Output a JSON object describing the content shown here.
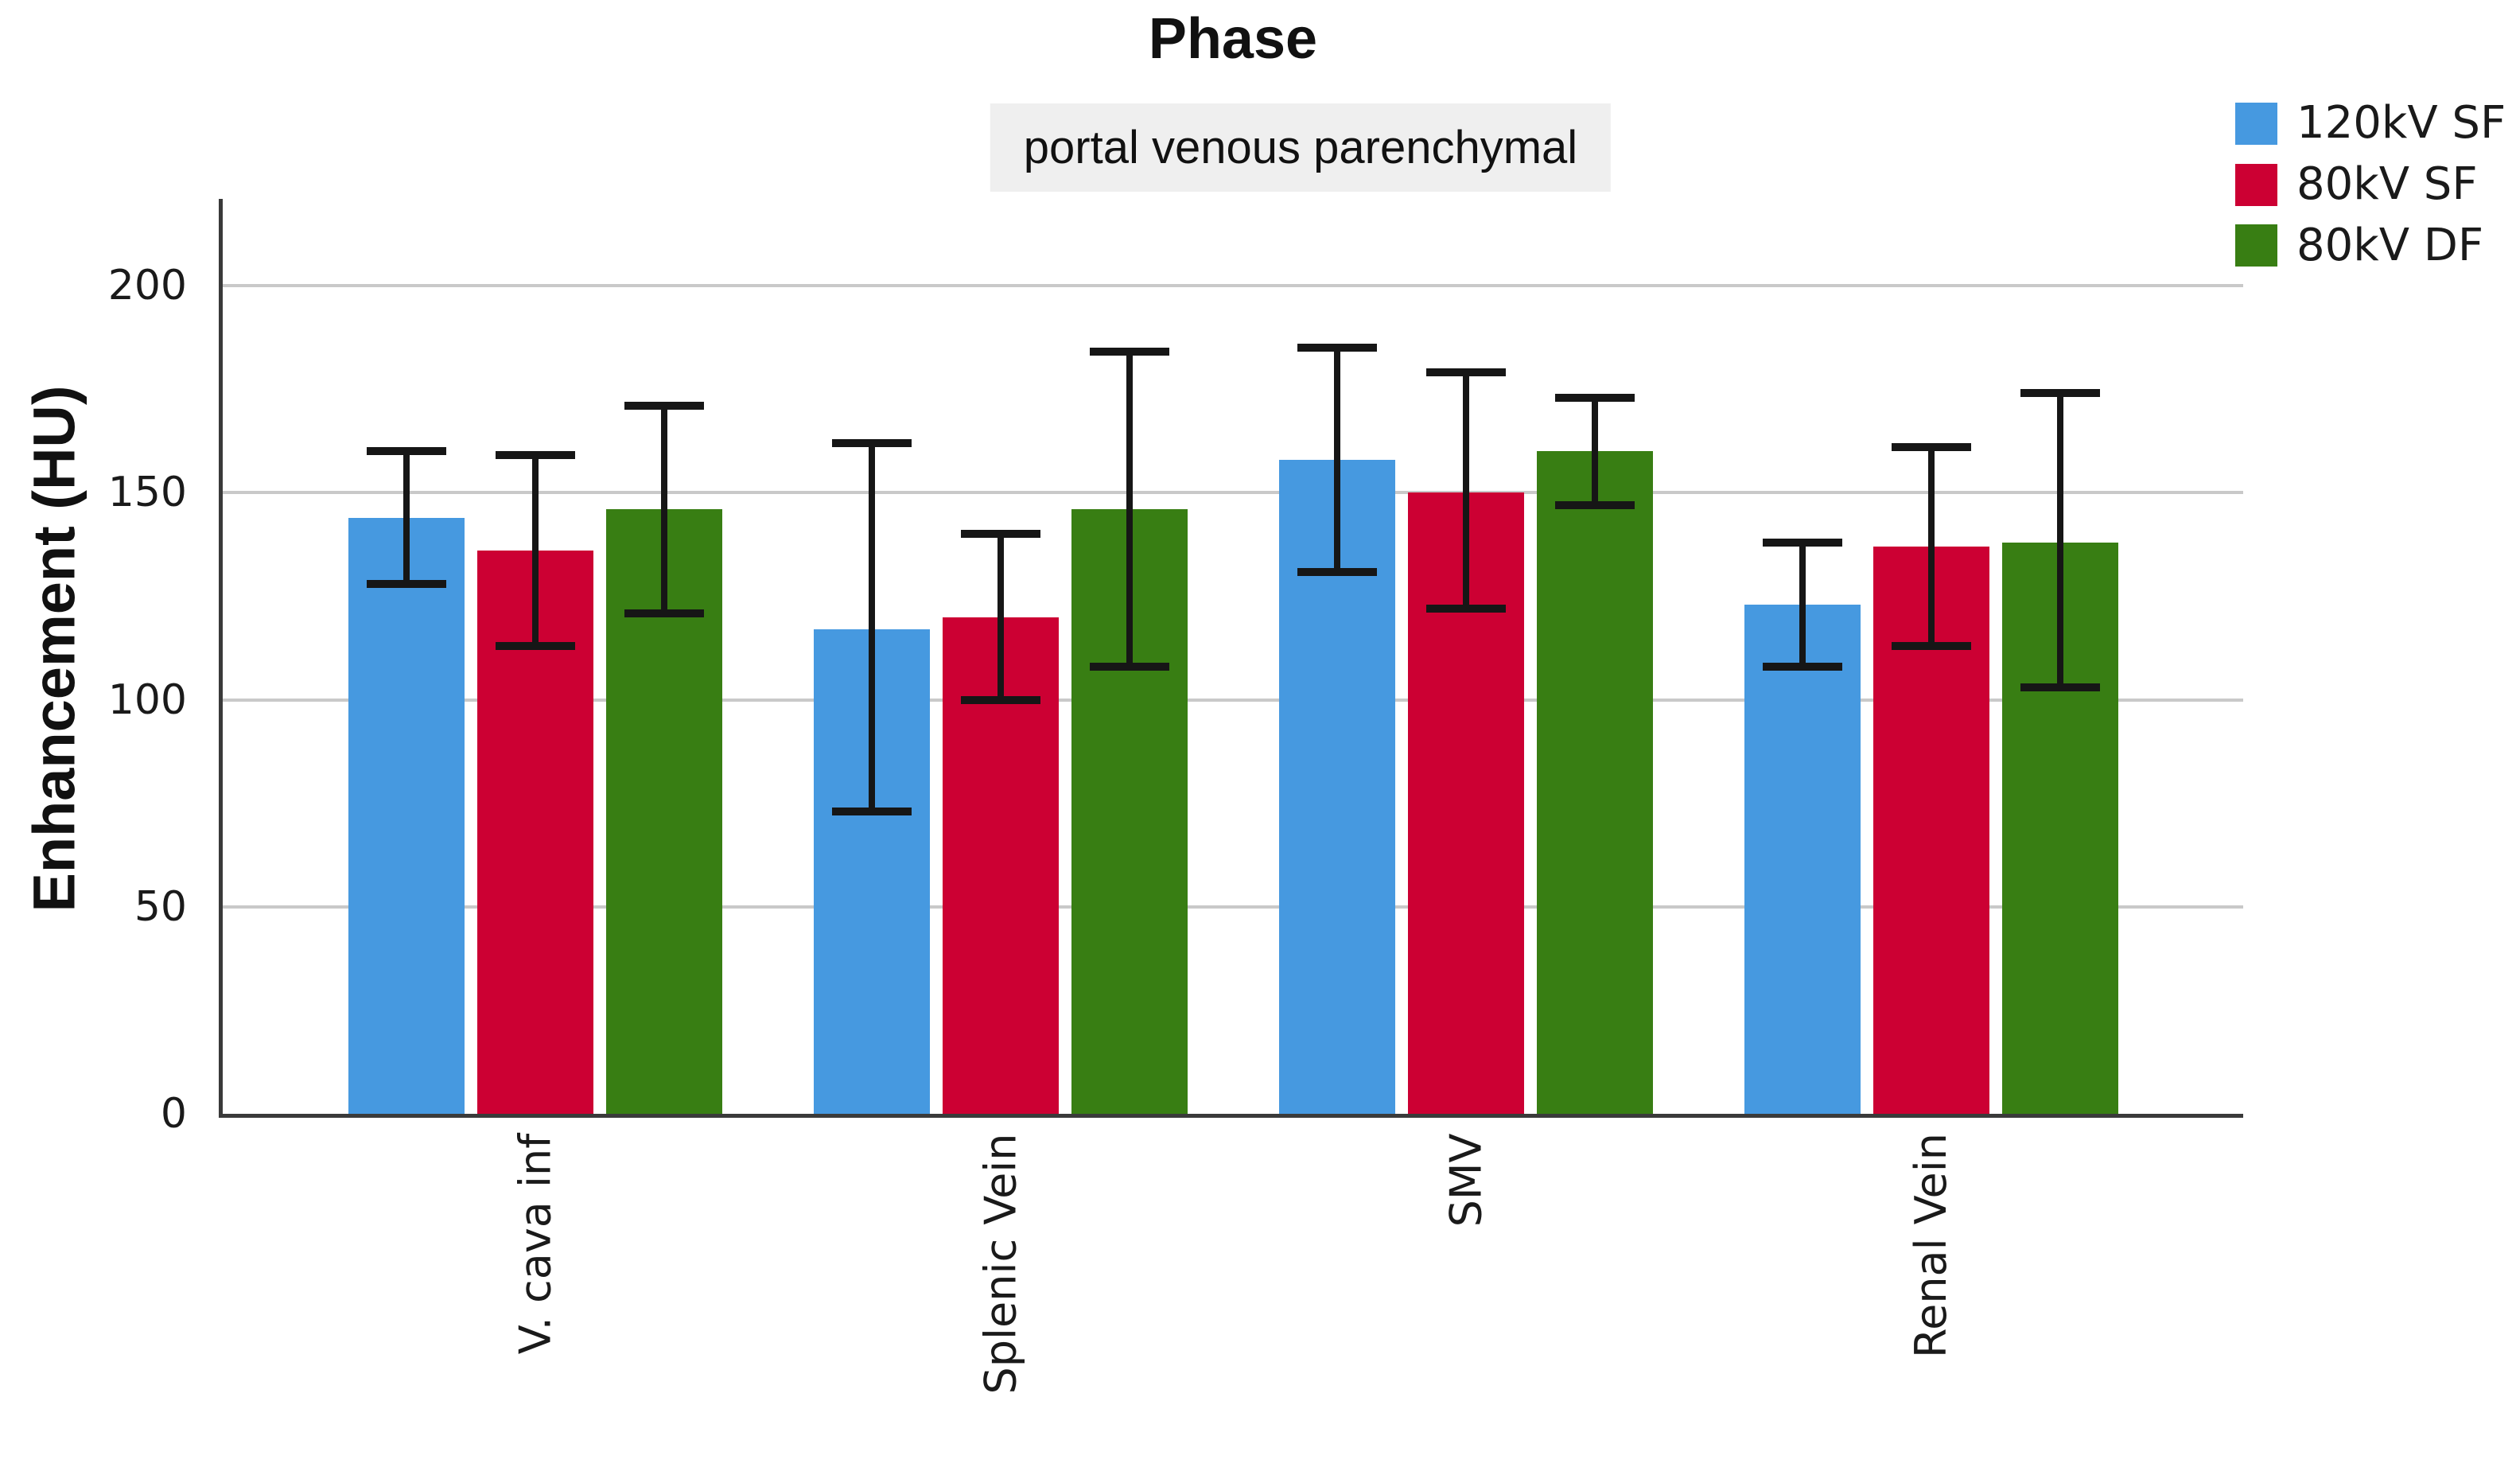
{
  "chart": {
    "title": "Phase",
    "subtitle": "portal venous parenchymal",
    "ylabel": "Enhancement (HU)"
  },
  "chart_data": {
    "type": "bar",
    "title": "Phase",
    "subtitle": "portal venous parenchymal",
    "xlabel": "",
    "ylabel": "Enhancement (HU)",
    "ylim": [
      0,
      221
    ],
    "yticks": [
      0,
      50,
      100,
      150,
      200
    ],
    "grid": true,
    "legend_position": "top-right",
    "error_bars": true,
    "categories": [
      "V. cava inf",
      "Splenic Vein",
      "SMV",
      "Renal Vein"
    ],
    "series": [
      {
        "name": "120kV SF",
        "color": "#4699E0",
        "values": [
          144,
          117,
          158,
          123
        ],
        "error_low": [
          127,
          72,
          130,
          107
        ],
        "error_high": [
          161,
          163,
          186,
          139
        ]
      },
      {
        "name": "80kV SF",
        "color": "#CC0033",
        "values": [
          136,
          120,
          150,
          137
        ],
        "error_low": [
          112,
          99,
          121,
          112
        ],
        "error_high": [
          160,
          141,
          180,
          162
        ]
      },
      {
        "name": "80kV DF",
        "color": "#387E13",
        "values": [
          146,
          146,
          160,
          138
        ],
        "error_low": [
          120,
          107,
          146,
          102
        ],
        "error_high": [
          172,
          185,
          174,
          175
        ]
      }
    ]
  },
  "style": {
    "grid_color": "#C9C9C9",
    "axis_color": "#3A3A3A",
    "error_color": "#161616",
    "text_color": "#1A1A1A",
    "subtitle_bg": "#EFEFEF"
  }
}
